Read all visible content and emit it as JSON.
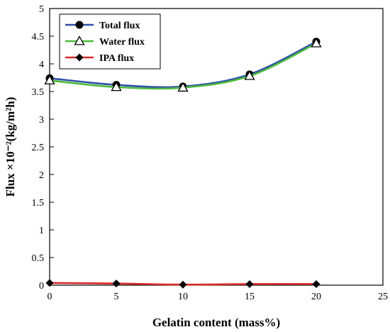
{
  "chart_data": {
    "type": "line",
    "xlabel": "Gelatin content (mass%)",
    "ylabel": "Flux ×10⁻²(kg/m²h)",
    "xlim": [
      0,
      25
    ],
    "ylim": [
      0,
      5
    ],
    "x_ticks": [
      "0",
      "5",
      "10",
      "15",
      "20",
      "25"
    ],
    "y_ticks": [
      "0",
      "0.5",
      "1",
      "1.5",
      "2",
      "2.5",
      "3",
      "3.5",
      "4",
      "4.5",
      "5"
    ],
    "grid": false,
    "legend_position": "top-left",
    "x": [
      0,
      5,
      10,
      15,
      20
    ],
    "series": [
      {
        "name": "Total flux",
        "values": [
          3.74,
          3.62,
          3.59,
          3.81,
          4.4
        ],
        "color": "#2f4fa8",
        "marker": "filled-circle"
      },
      {
        "name": "Water flux",
        "values": [
          3.7,
          3.58,
          3.57,
          3.78,
          4.37
        ],
        "color": "#4cbb3c",
        "marker": "open-triangle"
      },
      {
        "name": "IPA flux",
        "values": [
          0.04,
          0.03,
          0.01,
          0.02,
          0.02
        ],
        "color": "#d92a2a",
        "marker": "filled-diamond"
      }
    ]
  }
}
